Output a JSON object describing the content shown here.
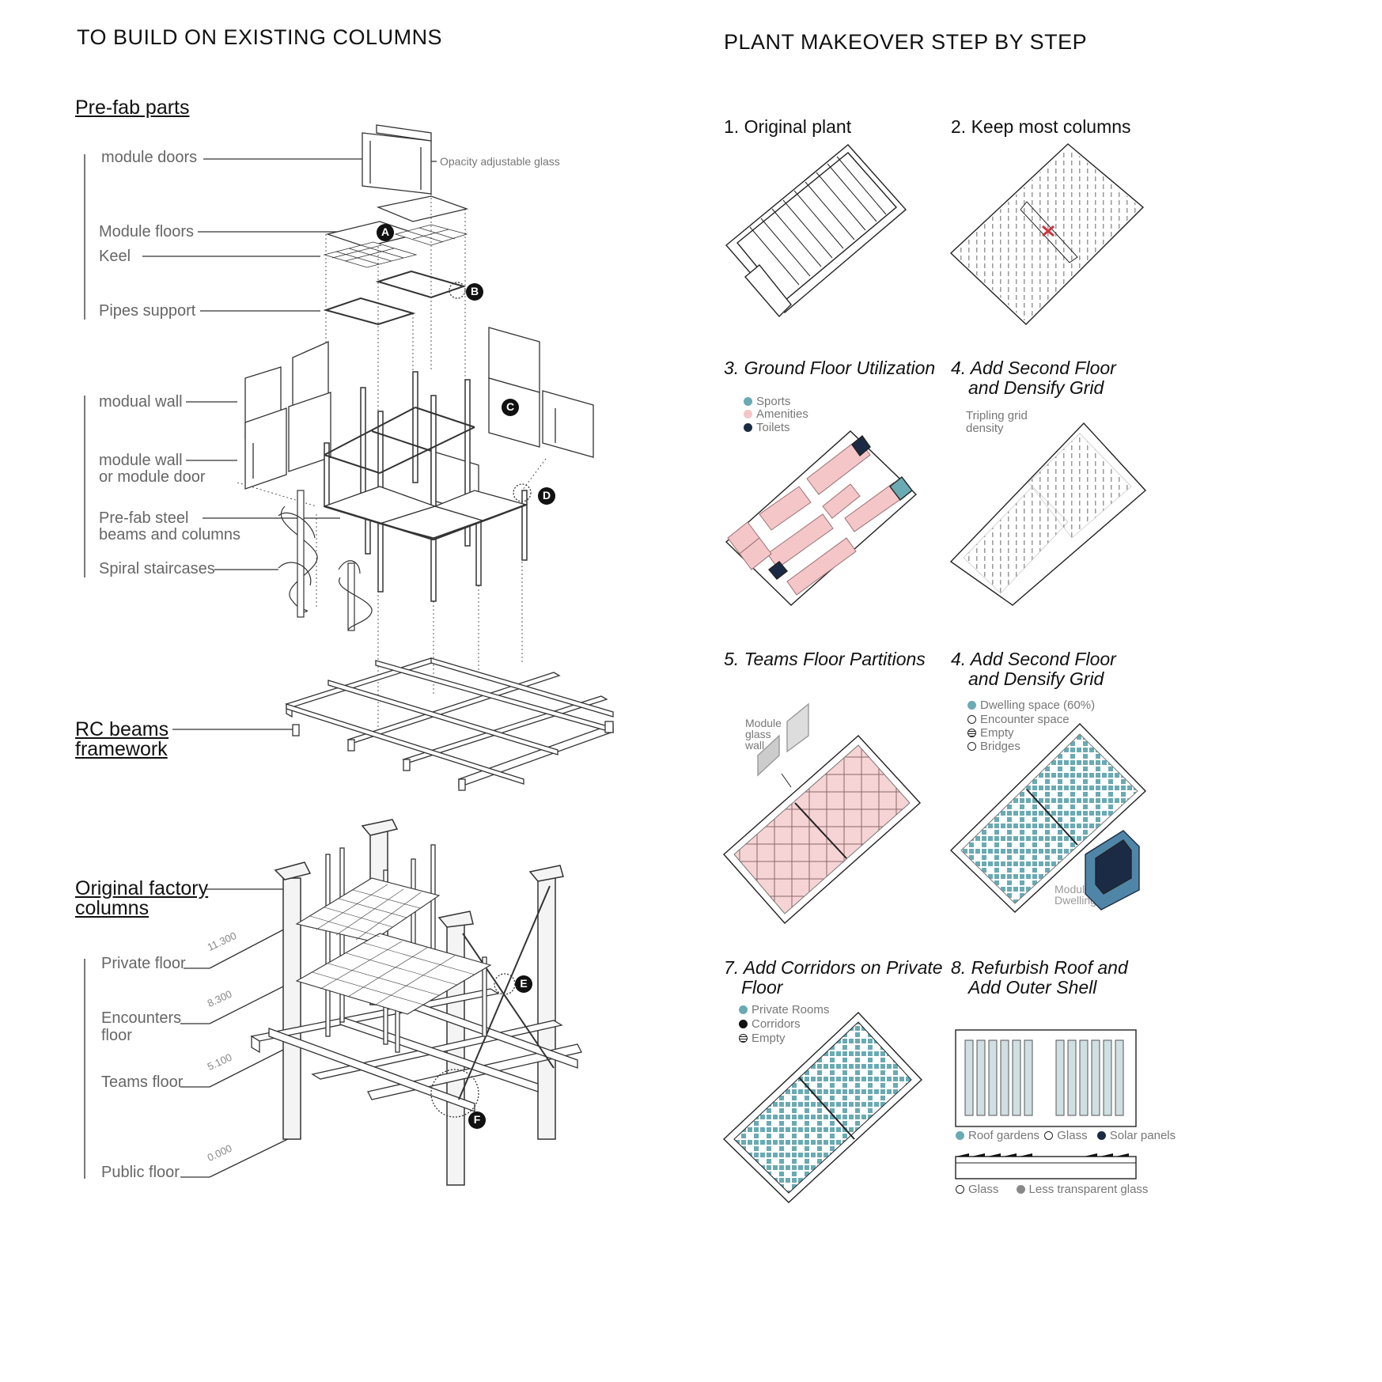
{
  "left": {
    "title": "TO BUILD ON EXISTING COLUMNS",
    "prefab_heading": "Pre-fab parts",
    "labels": {
      "module_doors": "module doors",
      "opacity_glass": "Opacity adjustable glass",
      "module_floors": "Module floors",
      "keel": "Keel",
      "pipes_support": "Pipes support",
      "modual_wall": "modual wall",
      "module_wall_door_1": "module wall",
      "module_wall_door_2": "or module door",
      "steel_1": "Pre-fab steel",
      "steel_2": "beams and columns",
      "spiral": "Spiral staircases"
    },
    "markers": [
      "A",
      "B",
      "C",
      "D",
      "E",
      "F"
    ],
    "rc_heading_1": "RC beams",
    "rc_heading_2": "framework",
    "orig_heading_1": "Original factory",
    "orig_heading_2": "columns",
    "floors": {
      "private": "Private floor",
      "encounters_1": "Encounters",
      "encounters_2": "floor",
      "teams": "Teams floor",
      "public": "Public floor"
    },
    "levels": [
      "11.300",
      "8.300",
      "5.100",
      "0.000"
    ]
  },
  "right": {
    "title": "PLANT MAKEOVER STEP BY STEP",
    "steps": {
      "s1": "1. Original plant",
      "s2": "2. Keep most columns",
      "s3": "3. Ground Floor Utilization",
      "s4a_1": "4. Add Second Floor",
      "s4a_2": "and Densify Grid",
      "s5": "5. Teams Floor Partitions",
      "s4b_1": "4. Add Second Floor",
      "s4b_2": "and Densify Grid",
      "s7_1": "7. Add Corridors on Private",
      "s7_2": "Floor",
      "s8_1": "8. Refurbish Roof and",
      "s8_2": "Add Outer Shell"
    },
    "legend3": [
      "Sports",
      "Amenities",
      "Toilets"
    ],
    "note4a_1": "Tripling grid",
    "note4a_2": "density",
    "module_glass": [
      "Module",
      "glass",
      "wall"
    ],
    "legend4b": [
      "Dwelling space (60%)",
      "Encounter space",
      "Empty",
      "Bridges"
    ],
    "module_dwellings": [
      "Module",
      "Dwellings"
    ],
    "legend7": [
      "Private Rooms",
      "Corridors",
      "Empty"
    ],
    "legend8a": [
      "Roof gardens",
      "Glass",
      "Solar panels"
    ],
    "legend8b": [
      "Glass",
      "Less transparent glass"
    ]
  },
  "colors": {
    "teal": "#6aaab3",
    "pink": "#f4c6c8",
    "navy": "#1c2b45",
    "line": "#333333",
    "grey_label": "#777777"
  }
}
